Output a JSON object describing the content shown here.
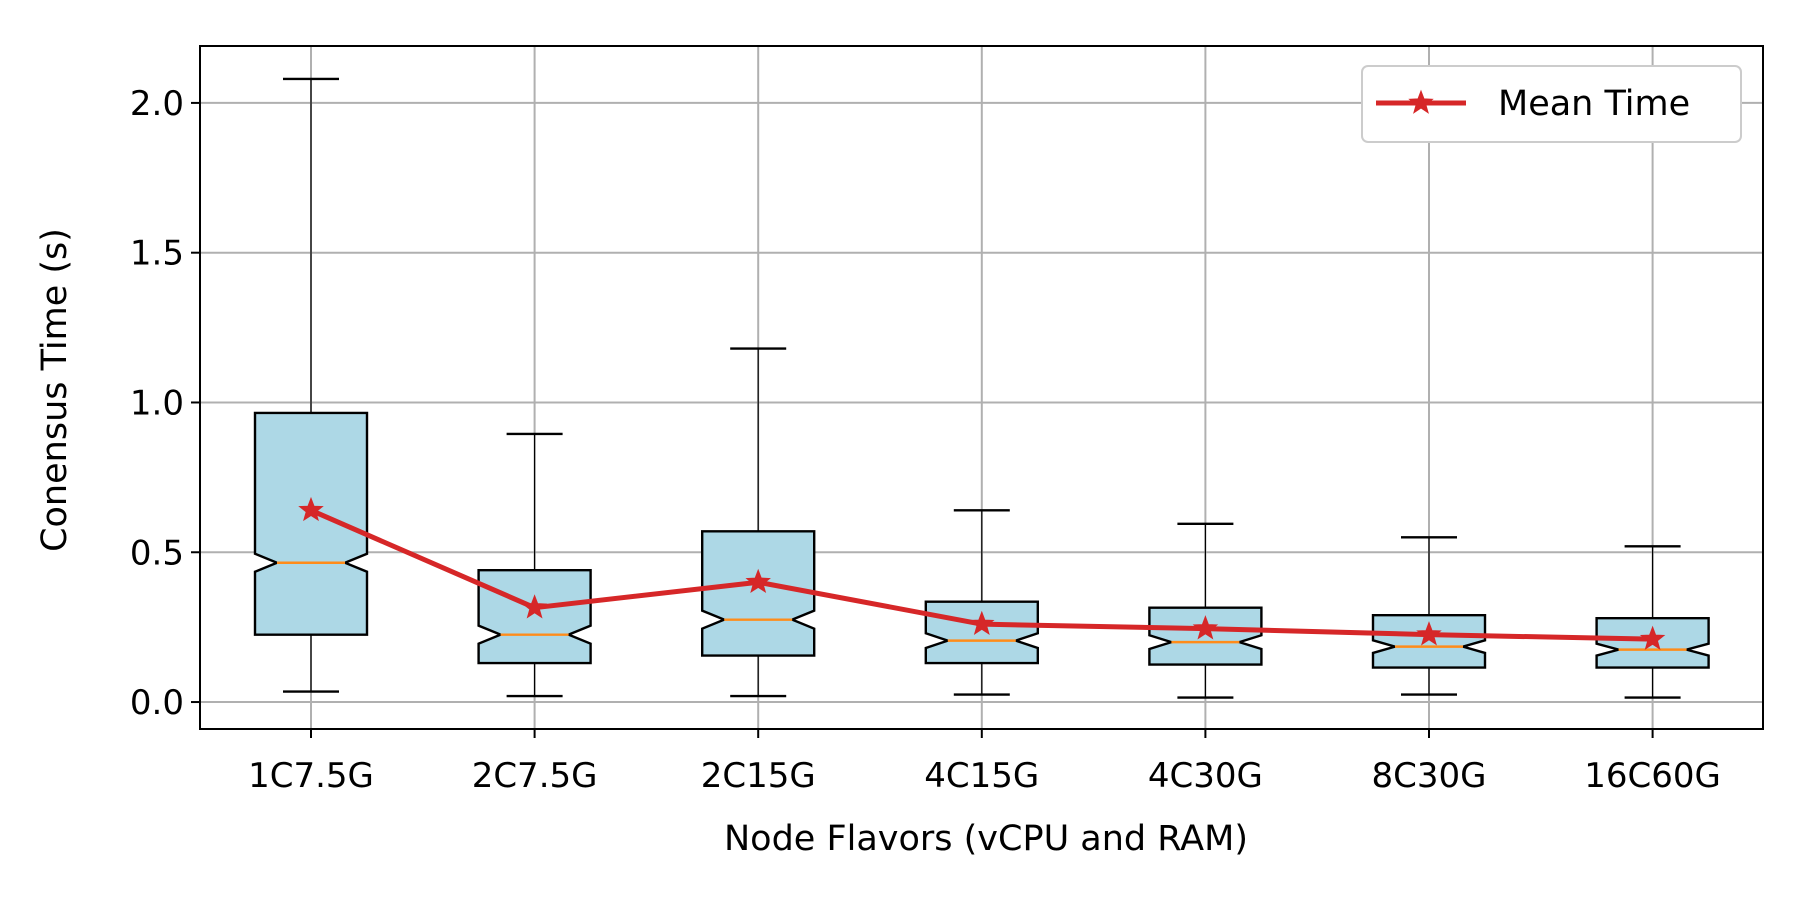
{
  "chart_data": {
    "type": "box",
    "title": "",
    "xlabel": "Node Flavors (vCPU and RAM)",
    "ylabel": "Conensus Time (s)",
    "ylim": [
      -0.09,
      2.19
    ],
    "yticks": [
      "0.0",
      "0.5",
      "1.0",
      "1.5",
      "2.0"
    ],
    "grid": true,
    "legend_position": "top-right",
    "categories": [
      "1C7.5G",
      "2C7.5G",
      "2C15G",
      "4C15G",
      "4C30G",
      "8C30G",
      "16C60G"
    ],
    "boxes": [
      {
        "whisker_low": 0.035,
        "q1": 0.225,
        "median": 0.465,
        "q3": 0.965,
        "whisker_high": 2.08
      },
      {
        "whisker_low": 0.02,
        "q1": 0.13,
        "median": 0.225,
        "q3": 0.44,
        "whisker_high": 0.895
      },
      {
        "whisker_low": 0.02,
        "q1": 0.155,
        "median": 0.275,
        "q3": 0.57,
        "whisker_high": 1.18
      },
      {
        "whisker_low": 0.025,
        "q1": 0.13,
        "median": 0.205,
        "q3": 0.335,
        "whisker_high": 0.64
      },
      {
        "whisker_low": 0.015,
        "q1": 0.125,
        "median": 0.2,
        "q3": 0.315,
        "whisker_high": 0.595
      },
      {
        "whisker_low": 0.025,
        "q1": 0.115,
        "median": 0.185,
        "q3": 0.29,
        "whisker_high": 0.55
      },
      {
        "whisker_low": 0.015,
        "q1": 0.115,
        "median": 0.175,
        "q3": 0.28,
        "whisker_high": 0.52
      }
    ],
    "series": [
      {
        "name": "Mean Time",
        "type": "line",
        "marker": "star",
        "values": [
          0.64,
          0.315,
          0.4,
          0.26,
          0.245,
          0.225,
          0.21
        ]
      }
    ],
    "colors": {
      "box_fill": "#add8e6",
      "median": "#ff8c1a",
      "mean_line": "#d62728",
      "grid": "#b0b0b0"
    }
  }
}
